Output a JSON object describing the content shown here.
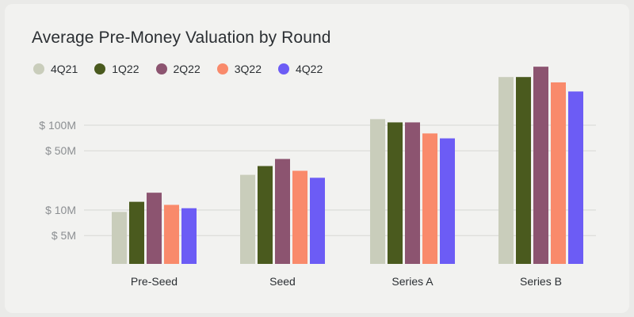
{
  "chart_data": {
    "type": "bar",
    "title": "Average Pre-Money Valuation by Round",
    "xlabel": "",
    "ylabel": "",
    "scale": "log",
    "grid": true,
    "legend_position": "top-left",
    "categories": [
      "Pre-Seed",
      "Seed",
      "Series A",
      "Series B"
    ],
    "yticks": [
      {
        "label": "$ 100M",
        "value": 100
      },
      {
        "label": "$ 50M",
        "value": 50
      },
      {
        "label": "$ 10M",
        "value": 10
      },
      {
        "label": "$ 5M",
        "value": 5
      }
    ],
    "series": [
      {
        "name": "4Q21",
        "color": "#c9cdbb",
        "values": [
          9.5,
          26,
          118,
          370
        ]
      },
      {
        "name": "1Q22",
        "color": "#4a5a1e",
        "values": [
          12.5,
          33,
          108,
          370
        ]
      },
      {
        "name": "2Q22",
        "color": "#8c5470",
        "values": [
          16,
          40,
          108,
          490
        ]
      },
      {
        "name": "3Q22",
        "color": "#f98a6b",
        "values": [
          11.5,
          29,
          80,
          320
        ]
      },
      {
        "name": "4Q22",
        "color": "#6c5cf5",
        "values": [
          10.5,
          24,
          70,
          250
        ]
      }
    ]
  }
}
